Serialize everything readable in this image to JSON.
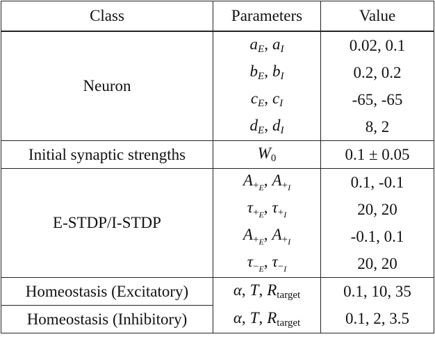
{
  "table": {
    "header": [
      "Class",
      "Parameters",
      "Value"
    ],
    "sections": [
      {
        "class": "Neuron",
        "rows": [
          {
            "parameters": [
              {
                "sym": "a",
                "sub": "E",
                "sep": ","
              },
              {
                "sym": "a",
                "sub": "I"
              }
            ],
            "value": "0.02, 0.1"
          },
          {
            "parameters": [
              {
                "sym": "b",
                "sub": "E",
                "sep": ","
              },
              {
                "sym": "b",
                "sub": "I"
              }
            ],
            "value": "0.2, 0.2"
          },
          {
            "parameters": [
              {
                "sym": "c",
                "sub": "E",
                "sep": ","
              },
              {
                "sym": "c",
                "sub": "I"
              }
            ],
            "value": "-65, -65"
          },
          {
            "parameters": [
              {
                "sym": "d",
                "sub": "E",
                "sep": ","
              },
              {
                "sym": "d",
                "sub": "I"
              }
            ],
            "value": "8, 2"
          }
        ]
      },
      {
        "class": "Initial synaptic strengths",
        "rows": [
          {
            "parameters": [
              {
                "sym": "W",
                "sub": "0"
              }
            ],
            "value": "0.1 ± 0.05"
          }
        ]
      },
      {
        "class": "E-STDP/I-STDP",
        "rows": [
          {
            "parameters": [
              {
                "sym": "A",
                "sub": "+",
                "sub2": "E",
                "sep": ","
              },
              {
                "sym": "A",
                "sub": "+",
                "sub2": "I"
              }
            ],
            "value": "0.1, -0.1"
          },
          {
            "parameters": [
              {
                "sym": "τ",
                "sub": "+",
                "sub2": "E",
                "sep": ","
              },
              {
                "sym": "τ",
                "sub": "+",
                "sub2": "I"
              }
            ],
            "value": "20, 20"
          },
          {
            "parameters": [
              {
                "sym": "A",
                "sub": "+",
                "sub2": "E",
                "sep": ","
              },
              {
                "sym": "A",
                "sub": "+",
                "sub2": "I"
              }
            ],
            "value": "-0.1, 0.1"
          },
          {
            "parameters": [
              {
                "sym": "τ",
                "sub": "−",
                "sub2": "E",
                "sep": ","
              },
              {
                "sym": "τ",
                "sub": "−",
                "sub2": "I"
              }
            ],
            "value": "20, 20"
          }
        ]
      },
      {
        "rows": [
          {
            "class": "Homeostasis (Excitatory)",
            "parameters": [
              {
                "sym": "α",
                "sep": ","
              },
              {
                "sym": "T",
                "sep": ","
              },
              {
                "sym": "R",
                "sub": "target"
              }
            ],
            "value": "0.1, 10, 35"
          },
          {
            "class": "Homeostasis (Inhibitory)",
            "parameters": [
              {
                "sym": "α",
                "sep": ","
              },
              {
                "sym": "T",
                "sep": ","
              },
              {
                "sym": "R",
                "sub": "target"
              }
            ],
            "value": "0.1, 2, 3.5"
          }
        ]
      }
    ]
  }
}
